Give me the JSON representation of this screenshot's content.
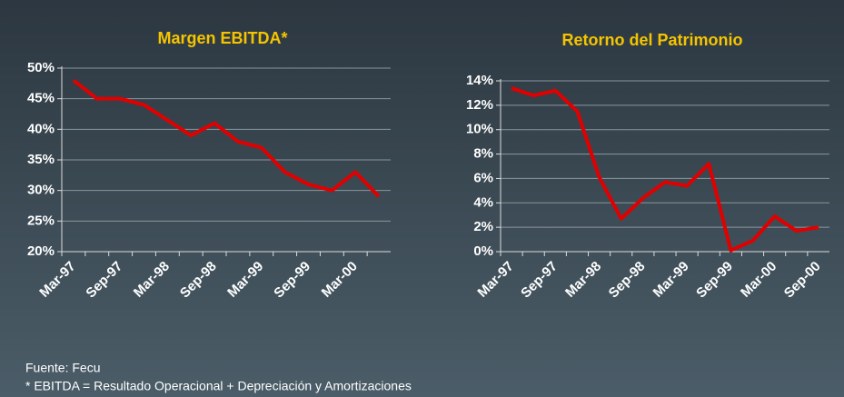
{
  "charts": [
    {
      "type": "line",
      "title": "Margen EBITDA*",
      "categories": [
        "Mar-97",
        null,
        "Sep-97",
        null,
        "Mar-98",
        null,
        "Sep-98",
        null,
        "Mar-99",
        null,
        "Sep-99",
        null,
        "Mar-00",
        null
      ],
      "series": [
        {
          "color": "#e00000",
          "values": [
            48,
            45,
            45,
            44,
            41.5,
            39,
            41,
            38,
            37,
            33,
            31,
            30,
            33,
            29
          ]
        }
      ],
      "ylim": [
        20,
        50
      ],
      "yticks": [
        {
          "value": 20,
          "label": "20%"
        },
        {
          "value": 25,
          "label": "25%"
        },
        {
          "value": 30,
          "label": "30%"
        },
        {
          "value": 35,
          "label": "35%"
        },
        {
          "value": 40,
          "label": "40%"
        },
        {
          "value": 45,
          "label": "45%"
        },
        {
          "value": 50,
          "label": "50%"
        }
      ],
      "grid": true
    },
    {
      "type": "line",
      "title": "Retorno del Patrimonio",
      "categories": [
        "Mar-97",
        null,
        "Sep-97",
        null,
        "Mar-98",
        null,
        "Sep-98",
        null,
        "Mar-99",
        null,
        "Sep-99",
        null,
        "Mar-00",
        null,
        "Sep-00"
      ],
      "series": [
        {
          "color": "#e00000",
          "values": [
            13.4,
            12.8,
            13.2,
            11.5,
            6.1,
            2.7,
            4.4,
            5.7,
            5.4,
            7.2,
            0.1,
            0.9,
            2.9,
            1.7,
            2.0
          ]
        }
      ],
      "ylim": [
        0,
        14
      ],
      "yticks": [
        {
          "value": 0,
          "label": "0%"
        },
        {
          "value": 2,
          "label": "2%"
        },
        {
          "value": 4,
          "label": "4%"
        },
        {
          "value": 6,
          "label": "6%"
        },
        {
          "value": 8,
          "label": "8%"
        },
        {
          "value": 10,
          "label": "10%"
        },
        {
          "value": 12,
          "label": "12%"
        },
        {
          "value": 14,
          "label": "14%"
        }
      ],
      "grid": true
    }
  ],
  "footer": {
    "source": "Fuente: Fecu",
    "note": "*  EBITDA = Resultado Operacional + Depreciación y Amortizaciones"
  }
}
